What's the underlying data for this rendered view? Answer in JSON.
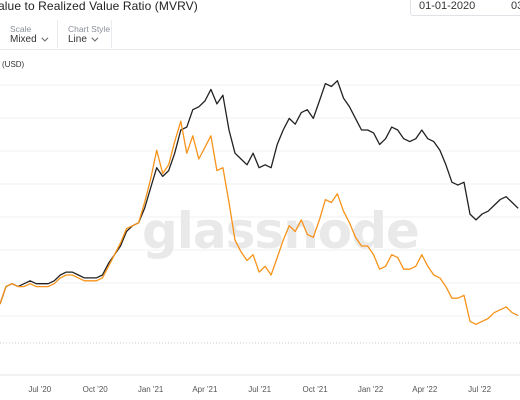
{
  "header": {
    "title": "alue to Realized Value Ratio (MVRV)",
    "date_start": "01-01-2020",
    "date_end": "03"
  },
  "controls": [
    {
      "label": "Scale",
      "value": "Mixed"
    },
    {
      "label": "Chart Style",
      "value": "Line"
    }
  ],
  "watermark": "glassnode",
  "chart_data": {
    "type": "line",
    "ylabel": "(USD)",
    "x_ticks": [
      "Jul '20",
      "Oct '20",
      "Jan '21",
      "Apr '21",
      "Jul '21",
      "Oct '21",
      "Jan '22",
      "Apr '22",
      "Jul '22"
    ],
    "x_range": [
      "2020-04-26",
      "2022-09-06"
    ],
    "y_range": [
      0,
      100
    ],
    "grid": true,
    "series": [
      {
        "color": "#222222",
        "points": [
          [
            "2020-04-26",
            20
          ],
          [
            "2020-05-06",
            26
          ],
          [
            "2020-05-16",
            27
          ],
          [
            "2020-05-26",
            26
          ],
          [
            "2020-06-05",
            27
          ],
          [
            "2020-06-15",
            28
          ],
          [
            "2020-06-25",
            27
          ],
          [
            "2020-07-05",
            27
          ],
          [
            "2020-07-15",
            27
          ],
          [
            "2020-07-25",
            28
          ],
          [
            "2020-08-04",
            30
          ],
          [
            "2020-08-14",
            31
          ],
          [
            "2020-08-24",
            31
          ],
          [
            "2020-09-03",
            30
          ],
          [
            "2020-09-13",
            29
          ],
          [
            "2020-09-23",
            29
          ],
          [
            "2020-10-03",
            29
          ],
          [
            "2020-10-13",
            30
          ],
          [
            "2020-10-23",
            34
          ],
          [
            "2020-11-02",
            37
          ],
          [
            "2020-11-12",
            40
          ],
          [
            "2020-11-22",
            45
          ],
          [
            "2020-12-02",
            47
          ],
          [
            "2020-12-12",
            48
          ],
          [
            "2020-12-22",
            53
          ],
          [
            "2021-01-01",
            60
          ],
          [
            "2021-01-11",
            67
          ],
          [
            "2021-01-21",
            64
          ],
          [
            "2021-01-31",
            66
          ],
          [
            "2021-02-10",
            72
          ],
          [
            "2021-02-20",
            80
          ],
          [
            "2021-03-02",
            81
          ],
          [
            "2021-03-12",
            87
          ],
          [
            "2021-03-22",
            88
          ],
          [
            "2021-04-01",
            90
          ],
          [
            "2021-04-11",
            94
          ],
          [
            "2021-04-21",
            89
          ],
          [
            "2021-05-01",
            92
          ],
          [
            "2021-05-11",
            80
          ],
          [
            "2021-05-21",
            72
          ],
          [
            "2021-05-31",
            70
          ],
          [
            "2021-06-10",
            68
          ],
          [
            "2021-06-20",
            72
          ],
          [
            "2021-06-30",
            67
          ],
          [
            "2021-07-10",
            68
          ],
          [
            "2021-07-20",
            67
          ],
          [
            "2021-07-30",
            75
          ],
          [
            "2021-08-09",
            80
          ],
          [
            "2021-08-19",
            84
          ],
          [
            "2021-08-29",
            82
          ],
          [
            "2021-09-08",
            86
          ],
          [
            "2021-09-18",
            87
          ],
          [
            "2021-09-28",
            84
          ],
          [
            "2021-10-08",
            90
          ],
          [
            "2021-10-18",
            96
          ],
          [
            "2021-10-28",
            95
          ],
          [
            "2021-11-07",
            97
          ],
          [
            "2021-11-17",
            91
          ],
          [
            "2021-11-27",
            88
          ],
          [
            "2021-12-07",
            84
          ],
          [
            "2021-12-17",
            80
          ],
          [
            "2021-12-27",
            80
          ],
          [
            "2022-01-06",
            79
          ],
          [
            "2022-01-16",
            75
          ],
          [
            "2022-01-26",
            77
          ],
          [
            "2022-02-05",
            81
          ],
          [
            "2022-02-15",
            80
          ],
          [
            "2022-02-25",
            77
          ],
          [
            "2022-03-07",
            76
          ],
          [
            "2022-03-17",
            77
          ],
          [
            "2022-03-27",
            80
          ],
          [
            "2022-04-06",
            77
          ],
          [
            "2022-04-16",
            76
          ],
          [
            "2022-04-26",
            73
          ],
          [
            "2022-05-06",
            68
          ],
          [
            "2022-05-16",
            62
          ],
          [
            "2022-05-26",
            61
          ],
          [
            "2022-06-05",
            62
          ],
          [
            "2022-06-15",
            51
          ],
          [
            "2022-06-25",
            49
          ],
          [
            "2022-07-05",
            51
          ],
          [
            "2022-07-15",
            52
          ],
          [
            "2022-07-25",
            54
          ],
          [
            "2022-08-04",
            56
          ],
          [
            "2022-08-14",
            57
          ],
          [
            "2022-08-24",
            55
          ],
          [
            "2022-09-03",
            53
          ]
        ]
      },
      {
        "color": "#f7931a",
        "points": [
          [
            "2020-04-26",
            20
          ],
          [
            "2020-05-06",
            26
          ],
          [
            "2020-05-16",
            27
          ],
          [
            "2020-05-26",
            26
          ],
          [
            "2020-06-05",
            26
          ],
          [
            "2020-06-15",
            27
          ],
          [
            "2020-06-25",
            26
          ],
          [
            "2020-07-05",
            26
          ],
          [
            "2020-07-15",
            26
          ],
          [
            "2020-07-25",
            27
          ],
          [
            "2020-08-04",
            29
          ],
          [
            "2020-08-14",
            30
          ],
          [
            "2020-08-24",
            30
          ],
          [
            "2020-09-03",
            29
          ],
          [
            "2020-09-13",
            28
          ],
          [
            "2020-09-23",
            28
          ],
          [
            "2020-10-03",
            28
          ],
          [
            "2020-10-13",
            29
          ],
          [
            "2020-10-23",
            33
          ],
          [
            "2020-11-02",
            37
          ],
          [
            "2020-11-12",
            41
          ],
          [
            "2020-11-22",
            46
          ],
          [
            "2020-12-02",
            47
          ],
          [
            "2020-12-12",
            48
          ],
          [
            "2020-12-22",
            55
          ],
          [
            "2021-01-01",
            63
          ],
          [
            "2021-01-11",
            73
          ],
          [
            "2021-01-21",
            65
          ],
          [
            "2021-01-31",
            68
          ],
          [
            "2021-02-10",
            76
          ],
          [
            "2021-02-20",
            83
          ],
          [
            "2021-03-02",
            72
          ],
          [
            "2021-03-12",
            78
          ],
          [
            "2021-03-22",
            70
          ],
          [
            "2021-04-01",
            74
          ],
          [
            "2021-04-11",
            78
          ],
          [
            "2021-04-21",
            66
          ],
          [
            "2021-05-01",
            67
          ],
          [
            "2021-05-11",
            55
          ],
          [
            "2021-05-21",
            42
          ],
          [
            "2021-05-31",
            38
          ],
          [
            "2021-06-10",
            35
          ],
          [
            "2021-06-20",
            37
          ],
          [
            "2021-06-30",
            31
          ],
          [
            "2021-07-10",
            33
          ],
          [
            "2021-07-20",
            30
          ],
          [
            "2021-07-30",
            36
          ],
          [
            "2021-08-09",
            42
          ],
          [
            "2021-08-19",
            47
          ],
          [
            "2021-08-29",
            45
          ],
          [
            "2021-09-08",
            49
          ],
          [
            "2021-09-18",
            44
          ],
          [
            "2021-09-28",
            43
          ],
          [
            "2021-10-08",
            49
          ],
          [
            "2021-10-18",
            56
          ],
          [
            "2021-10-28",
            55
          ],
          [
            "2021-11-07",
            58
          ],
          [
            "2021-11-17",
            52
          ],
          [
            "2021-11-27",
            48
          ],
          [
            "2021-12-07",
            43
          ],
          [
            "2021-12-17",
            40
          ],
          [
            "2021-12-27",
            40
          ],
          [
            "2022-01-06",
            37
          ],
          [
            "2022-01-16",
            32
          ],
          [
            "2022-01-26",
            33
          ],
          [
            "2022-02-05",
            37
          ],
          [
            "2022-02-15",
            36
          ],
          [
            "2022-02-25",
            32
          ],
          [
            "2022-03-07",
            32
          ],
          [
            "2022-03-17",
            33
          ],
          [
            "2022-03-27",
            37
          ],
          [
            "2022-04-06",
            33
          ],
          [
            "2022-04-16",
            30
          ],
          [
            "2022-04-26",
            29
          ],
          [
            "2022-05-06",
            26
          ],
          [
            "2022-05-16",
            22
          ],
          [
            "2022-05-26",
            22
          ],
          [
            "2022-06-05",
            23
          ],
          [
            "2022-06-15",
            14
          ],
          [
            "2022-06-25",
            13
          ],
          [
            "2022-07-05",
            14
          ],
          [
            "2022-07-15",
            15
          ],
          [
            "2022-07-25",
            17
          ],
          [
            "2022-08-04",
            18
          ],
          [
            "2022-08-14",
            19
          ],
          [
            "2022-08-24",
            17
          ],
          [
            "2022-09-03",
            16
          ]
        ]
      }
    ]
  }
}
